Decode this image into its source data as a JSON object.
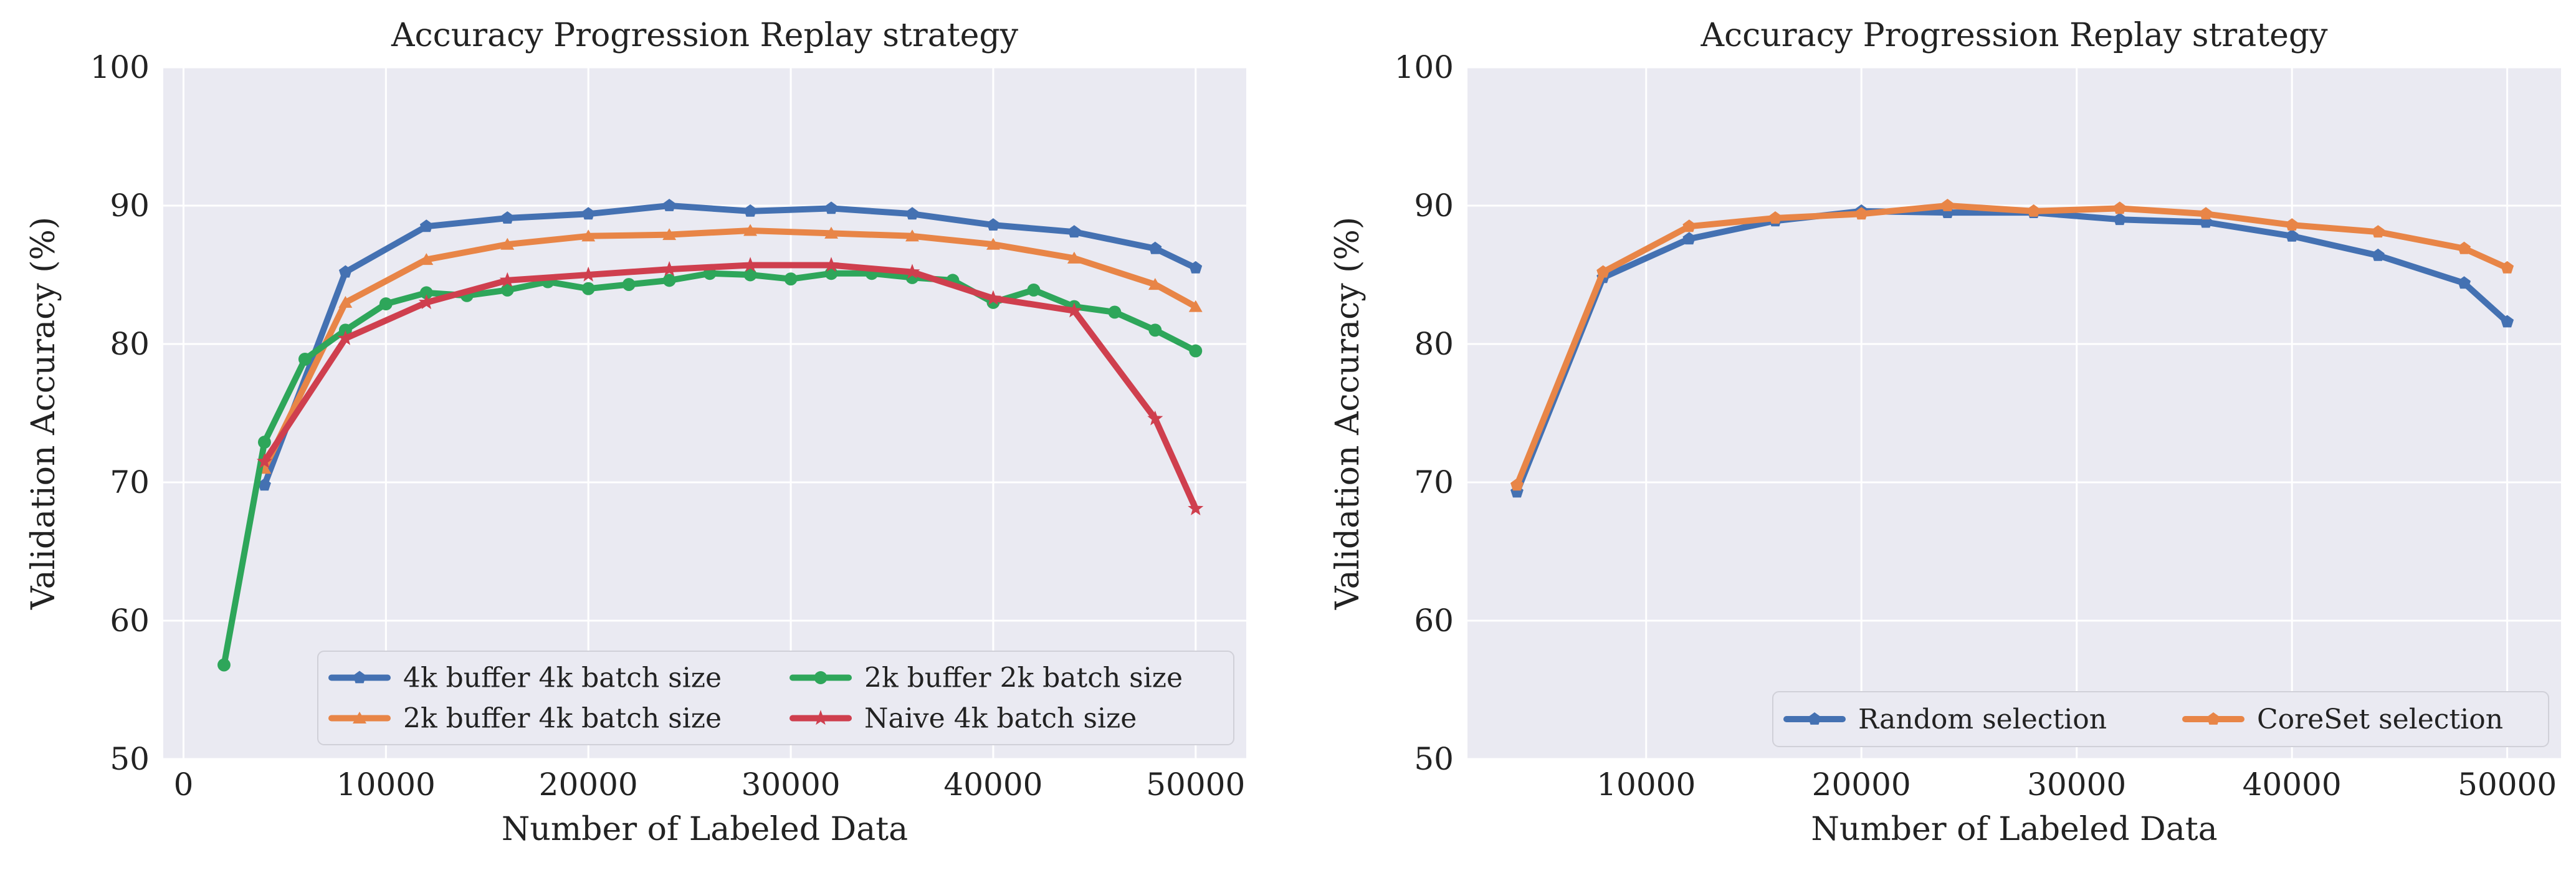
{
  "chart_data": [
    {
      "type": "line",
      "title": "Accuracy Progression Replay strategy",
      "xlabel": "Number of Labeled Data",
      "ylabel": "Validation Accuracy (%)",
      "xlim": [
        -1000,
        52500
      ],
      "ylim": [
        50,
        100
      ],
      "xticks": [
        0,
        10000,
        20000,
        30000,
        40000,
        50000
      ],
      "yticks": [
        50,
        60,
        70,
        80,
        90,
        100
      ],
      "grid": true,
      "legend_position": "lower-right",
      "legend_columns": 2,
      "series": [
        {
          "name": "4k buffer 4k batch size",
          "color": "#4471b2",
          "marker": "pentagon",
          "x": [
            4000,
            8000,
            12000,
            16000,
            20000,
            24000,
            28000,
            32000,
            36000,
            40000,
            44000,
            48000,
            50000
          ],
          "y": [
            69.8,
            85.2,
            88.5,
            89.1,
            89.4,
            90.0,
            89.6,
            89.8,
            89.4,
            88.6,
            88.1,
            86.9,
            85.5
          ]
        },
        {
          "name": "2k buffer 4k batch size",
          "color": "#e88547",
          "marker": "triangle",
          "x": [
            4000,
            8000,
            12000,
            16000,
            20000,
            24000,
            28000,
            32000,
            36000,
            40000,
            44000,
            48000,
            50000
          ],
          "y": [
            71.0,
            83.0,
            86.1,
            87.2,
            87.8,
            87.9,
            88.2,
            88.0,
            87.8,
            87.2,
            86.2,
            84.3,
            82.7
          ]
        },
        {
          "name": "2k buffer 2k batch size",
          "color": "#2ea65a",
          "marker": "circle",
          "x": [
            2000,
            4000,
            6000,
            8000,
            10000,
            12000,
            14000,
            16000,
            18000,
            20000,
            22000,
            24000,
            26000,
            28000,
            30000,
            32000,
            34000,
            36000,
            38000,
            40000,
            42000,
            44000,
            46000,
            48000,
            50000
          ],
          "y": [
            56.8,
            72.9,
            78.9,
            81.0,
            82.9,
            83.7,
            83.5,
            83.9,
            84.5,
            84.0,
            84.3,
            84.6,
            85.1,
            85.0,
            84.7,
            85.1,
            85.1,
            84.8,
            84.6,
            83.0,
            83.9,
            82.7,
            82.3,
            81.0,
            79.5
          ]
        },
        {
          "name": "Naive 4k batch size",
          "color": "#cf3f4e",
          "marker": "star",
          "x": [
            4000,
            8000,
            12000,
            16000,
            20000,
            24000,
            28000,
            32000,
            36000,
            40000,
            44000,
            48000,
            50000
          ],
          "y": [
            71.5,
            80.4,
            83.0,
            84.6,
            85.0,
            85.4,
            85.7,
            85.7,
            85.2,
            83.3,
            82.4,
            74.6,
            68.1
          ]
        }
      ]
    },
    {
      "type": "line",
      "title": "Accuracy Progression Replay strategy",
      "xlabel": "Number of Labeled Data",
      "ylabel": "Validation Accuracy (%)",
      "xlim": [
        1700,
        52500
      ],
      "ylim": [
        50,
        100
      ],
      "xticks": [
        10000,
        20000,
        30000,
        40000,
        50000
      ],
      "yticks": [
        50,
        60,
        70,
        80,
        90,
        100
      ],
      "grid": true,
      "legend_position": "lower-right",
      "legend_columns": 2,
      "series": [
        {
          "name": "Random selection",
          "color": "#4471b2",
          "marker": "pentagon",
          "x": [
            4000,
            8000,
            12000,
            16000,
            20000,
            24000,
            28000,
            32000,
            36000,
            40000,
            44000,
            48000,
            50000
          ],
          "y": [
            69.3,
            84.8,
            87.6,
            88.9,
            89.6,
            89.5,
            89.5,
            89.0,
            88.8,
            87.8,
            86.4,
            84.4,
            81.6
          ]
        },
        {
          "name": "CoreSet selection",
          "color": "#e88547",
          "marker": "pentagon",
          "x": [
            4000,
            8000,
            12000,
            16000,
            20000,
            24000,
            28000,
            32000,
            36000,
            40000,
            44000,
            48000,
            50000
          ],
          "y": [
            69.8,
            85.2,
            88.5,
            89.1,
            89.4,
            90.0,
            89.6,
            89.8,
            89.4,
            88.6,
            88.1,
            86.9,
            85.5
          ]
        }
      ]
    }
  ]
}
